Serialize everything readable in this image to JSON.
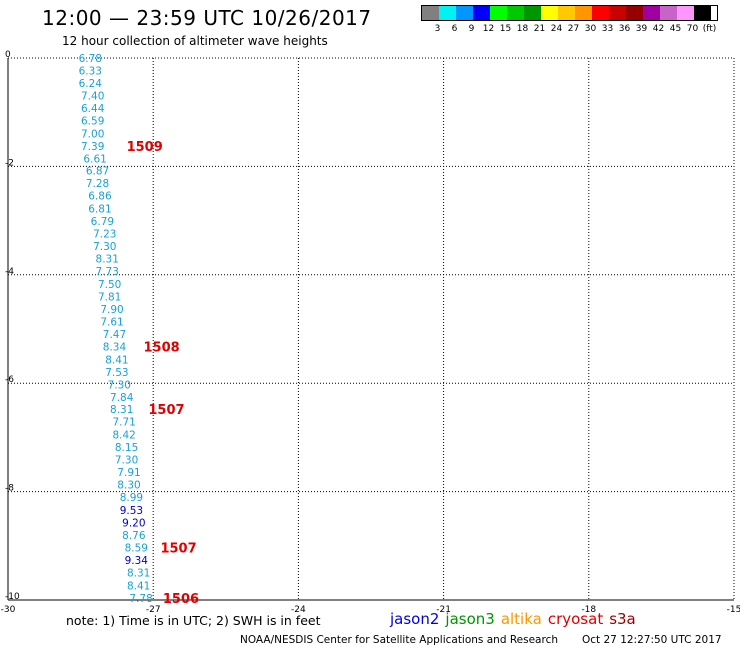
{
  "header": {
    "title": "12:00 — 23:59 UTC 10/26/2017",
    "subtitle": "12 hour collection of altimeter wave heights"
  },
  "color_scale": {
    "colors": [
      "#808080",
      "#00f2f2",
      "#0096ff",
      "#0000ff",
      "#00ff00",
      "#00c800",
      "#009600",
      "#ffff00",
      "#ffc800",
      "#ff9600",
      "#ff0000",
      "#c80000",
      "#960000",
      "#a000a0",
      "#c864c8",
      "#ff96ff",
      "#000000"
    ],
    "labels": [
      "3",
      "6",
      "9",
      "12",
      "15",
      "18",
      "21",
      "24",
      "27",
      "30",
      "33",
      "36",
      "39",
      "42",
      "45",
      "70",
      "(ft)"
    ]
  },
  "chart_data": {
    "type": "scatter",
    "xlim": [
      -30,
      -15
    ],
    "ylim": [
      -10,
      0
    ],
    "x_ticks": [
      -30,
      -27,
      -24,
      -21,
      -18,
      -15
    ],
    "y_ticks": [
      0,
      -2,
      -4,
      -6,
      -8,
      -10
    ],
    "grid": "dotted",
    "points": [
      {
        "x": -28.3,
        "y": 0.0,
        "swh": "6.78",
        "color": "#16a2d6"
      },
      {
        "x": -28.3,
        "y": -0.23,
        "swh": "6.33",
        "color": "#16a2d6"
      },
      {
        "x": -28.3,
        "y": -0.46,
        "swh": "6.24",
        "color": "#16a2d6"
      },
      {
        "x": -28.25,
        "y": -0.69,
        "swh": "7.40",
        "color": "#16a2d6"
      },
      {
        "x": -28.25,
        "y": -0.92,
        "swh": "6.44",
        "color": "#16a2d6"
      },
      {
        "x": -28.25,
        "y": -1.15,
        "swh": "6.59",
        "color": "#16a2d6"
      },
      {
        "x": -28.25,
        "y": -1.39,
        "swh": "7.00",
        "color": "#16a2d6"
      },
      {
        "x": -28.25,
        "y": -1.62,
        "swh": "7.39",
        "color": "#16a2d6"
      },
      {
        "x": -28.2,
        "y": -1.85,
        "swh": "6.61",
        "color": "#16a2d6"
      },
      {
        "x": -28.15,
        "y": -2.08,
        "swh": "6.87",
        "color": "#16a2d6"
      },
      {
        "x": -28.15,
        "y": -2.31,
        "swh": "7.28",
        "color": "#16a2d6"
      },
      {
        "x": -28.1,
        "y": -2.54,
        "swh": "6.86",
        "color": "#16a2d6"
      },
      {
        "x": -28.1,
        "y": -2.78,
        "swh": "6.81",
        "color": "#16a2d6"
      },
      {
        "x": -28.05,
        "y": -3.01,
        "swh": "6.79",
        "color": "#16a2d6"
      },
      {
        "x": -28.0,
        "y": -3.24,
        "swh": "7.23",
        "color": "#16a2d6"
      },
      {
        "x": -28.0,
        "y": -3.47,
        "swh": "7.30",
        "color": "#16a2d6"
      },
      {
        "x": -27.95,
        "y": -3.7,
        "swh": "8.31",
        "color": "#16a2d6"
      },
      {
        "x": -27.95,
        "y": -3.93,
        "swh": "7.73",
        "color": "#16a2d6"
      },
      {
        "x": -27.9,
        "y": -4.17,
        "swh": "7.50",
        "color": "#16a2d6"
      },
      {
        "x": -27.9,
        "y": -4.4,
        "swh": "7.81",
        "color": "#16a2d6"
      },
      {
        "x": -27.85,
        "y": -4.63,
        "swh": "7.90",
        "color": "#16a2d6"
      },
      {
        "x": -27.85,
        "y": -4.86,
        "swh": "7.61",
        "color": "#16a2d6"
      },
      {
        "x": -27.8,
        "y": -5.09,
        "swh": "7.47",
        "color": "#16a2d6"
      },
      {
        "x": -27.8,
        "y": -5.32,
        "swh": "8.34",
        "color": "#16a2d6"
      },
      {
        "x": -27.75,
        "y": -5.56,
        "swh": "8.41",
        "color": "#16a2d6"
      },
      {
        "x": -27.75,
        "y": -5.79,
        "swh": "7.53",
        "color": "#16a2d6"
      },
      {
        "x": -27.7,
        "y": -6.02,
        "swh": "7.30",
        "color": "#16a2d6"
      },
      {
        "x": -27.65,
        "y": -6.25,
        "swh": "7.84",
        "color": "#16a2d6"
      },
      {
        "x": -27.65,
        "y": -6.48,
        "swh": "8.31",
        "color": "#16a2d6"
      },
      {
        "x": -27.6,
        "y": -6.71,
        "swh": "7.71",
        "color": "#16a2d6"
      },
      {
        "x": -27.6,
        "y": -6.95,
        "swh": "8.42",
        "color": "#16a2d6"
      },
      {
        "x": -27.55,
        "y": -7.18,
        "swh": "8.15",
        "color": "#16a2d6"
      },
      {
        "x": -27.55,
        "y": -7.41,
        "swh": "7.30",
        "color": "#16a2d6"
      },
      {
        "x": -27.5,
        "y": -7.64,
        "swh": "7.91",
        "color": "#16a2d6"
      },
      {
        "x": -27.5,
        "y": -7.87,
        "swh": "8.30",
        "color": "#16a2d6"
      },
      {
        "x": -27.45,
        "y": -8.1,
        "swh": "8.99",
        "color": "#16a2d6"
      },
      {
        "x": -27.45,
        "y": -8.34,
        "swh": "9.53",
        "color": "#0000c8"
      },
      {
        "x": -27.4,
        "y": -8.57,
        "swh": "9.20",
        "color": "#0000c8"
      },
      {
        "x": -27.4,
        "y": -8.8,
        "swh": "8.76",
        "color": "#16a2d6"
      },
      {
        "x": -27.35,
        "y": -9.03,
        "swh": "8.59",
        "color": "#16a2d6"
      },
      {
        "x": -27.35,
        "y": -9.26,
        "swh": "9.34",
        "color": "#0000c8"
      },
      {
        "x": -27.3,
        "y": -9.49,
        "swh": "8.31",
        "color": "#16a2d6"
      },
      {
        "x": -27.3,
        "y": -9.73,
        "swh": "8.41",
        "color": "#16a2d6"
      },
      {
        "x": -27.25,
        "y": -9.96,
        "swh": "7.78",
        "color": "#16a2d6"
      }
    ],
    "labels": [
      {
        "x": -27.55,
        "y": -1.62,
        "text": "1509",
        "color": "#e00000"
      },
      {
        "x": -27.2,
        "y": -5.32,
        "text": "1508",
        "color": "#e00000"
      },
      {
        "x": -27.1,
        "y": -6.48,
        "text": "1507",
        "color": "#e00000"
      },
      {
        "x": -26.85,
        "y": -9.03,
        "text": "1507",
        "color": "#e00000"
      },
      {
        "x": -26.8,
        "y": -9.96,
        "text": "1506",
        "color": "#e00000"
      }
    ]
  },
  "footer": {
    "note": "note:  1) Time is in UTC;  2) SWH is in feet",
    "satellites": [
      {
        "name": "jason2",
        "color": "#0000e0"
      },
      {
        "name": "jason3",
        "color": "#009600"
      },
      {
        "name": "altika",
        "color": "#ff9600"
      },
      {
        "name": "cryosat",
        "color": "#e00000"
      },
      {
        "name": "s3a",
        "color": "#960000"
      }
    ],
    "credit": "NOAA/NESDIS Center for Satellite Applications and Research",
    "timestamp": "Oct 27 12:27:50 UTC 2017"
  }
}
